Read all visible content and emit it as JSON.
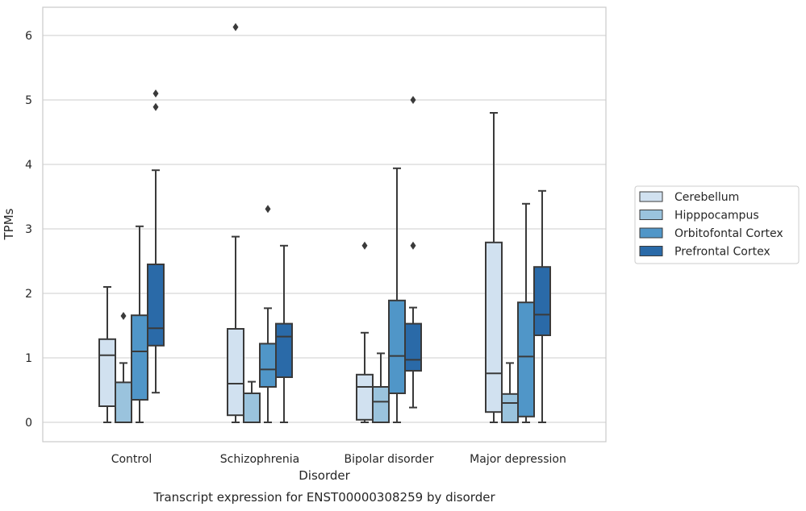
{
  "chart_data": {
    "type": "box",
    "title": "Transcript expression for ENST00000308259 by disorder",
    "xlabel": "Disorder",
    "ylabel": "TPMs",
    "ylim": [
      -0.3,
      6.45
    ],
    "yticks": [
      0,
      1,
      2,
      3,
      4,
      5,
      6
    ],
    "grid": true,
    "legend_position": "right",
    "categories": [
      "Control",
      "Schizophrenia",
      "Bipolar disorder",
      "Major depression"
    ],
    "series": [
      {
        "name": "Cerebellum",
        "color": "#d1e1f0",
        "boxes": [
          {
            "whisker_low": 0,
            "q1": 0.25,
            "median": 1.04,
            "q3": 1.29,
            "whisker_high": 2.1,
            "outliers": []
          },
          {
            "whisker_low": 0,
            "q1": 0.11,
            "median": 0.6,
            "q3": 1.45,
            "whisker_high": 2.88,
            "outliers": [
              6.13
            ]
          },
          {
            "whisker_low": 0,
            "q1": 0.04,
            "median": 0.55,
            "q3": 0.74,
            "whisker_high": 1.39,
            "outliers": [
              2.74
            ]
          },
          {
            "whisker_low": 0,
            "q1": 0.16,
            "median": 0.76,
            "q3": 2.79,
            "whisker_high": 4.8,
            "outliers": []
          }
        ]
      },
      {
        "name": "Hipppocampus",
        "color": "#9ac3dd",
        "boxes": [
          {
            "whisker_low": 0,
            "q1": 0,
            "median": 0,
            "q3": 0.62,
            "whisker_high": 0.92,
            "outliers": [
              1.65
            ]
          },
          {
            "whisker_low": 0,
            "q1": 0,
            "median": 0,
            "q3": 0.45,
            "whisker_high": 0.63,
            "outliers": []
          },
          {
            "whisker_low": 0,
            "q1": 0,
            "median": 0.32,
            "q3": 0.55,
            "whisker_high": 1.07,
            "outliers": []
          },
          {
            "whisker_low": 0,
            "q1": 0,
            "median": 0.3,
            "q3": 0.44,
            "whisker_high": 0.92,
            "outliers": []
          }
        ]
      },
      {
        "name": "Orbitofontal Cortex",
        "color": "#5096c8",
        "boxes": [
          {
            "whisker_low": 0,
            "q1": 0.35,
            "median": 1.1,
            "q3": 1.66,
            "whisker_high": 3.04,
            "outliers": []
          },
          {
            "whisker_low": 0,
            "q1": 0.55,
            "median": 0.82,
            "q3": 1.22,
            "whisker_high": 1.77,
            "outliers": [
              3.31
            ]
          },
          {
            "whisker_low": 0,
            "q1": 0.45,
            "median": 1.03,
            "q3": 1.89,
            "whisker_high": 3.94,
            "outliers": []
          },
          {
            "whisker_low": 0,
            "q1": 0.09,
            "median": 1.02,
            "q3": 1.86,
            "whisker_high": 3.39,
            "outliers": []
          }
        ]
      },
      {
        "name": "Prefrontal Cortex",
        "color": "#2a6aa8",
        "boxes": [
          {
            "whisker_low": 0.46,
            "q1": 1.19,
            "median": 1.46,
            "q3": 2.45,
            "whisker_high": 3.91,
            "outliers": [
              4.89,
              5.1
            ]
          },
          {
            "whisker_low": 0,
            "q1": 0.7,
            "median": 1.33,
            "q3": 1.53,
            "whisker_high": 2.74,
            "outliers": []
          },
          {
            "whisker_low": 0.23,
            "q1": 0.8,
            "median": 0.97,
            "q3": 1.53,
            "whisker_high": 1.78,
            "outliers": [
              2.74,
              5.0
            ]
          },
          {
            "whisker_low": 0,
            "q1": 1.35,
            "median": 1.67,
            "q3": 2.41,
            "whisker_high": 3.59,
            "outliers": []
          }
        ]
      }
    ]
  }
}
